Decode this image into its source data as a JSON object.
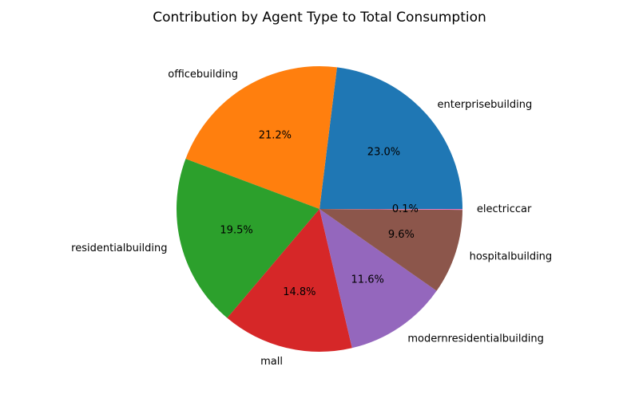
{
  "chart_data": {
    "type": "pie",
    "title": "Contribution by Agent Type to Total Consumption",
    "start_angle_deg": 0,
    "direction": "counterclockwise",
    "slices": [
      {
        "label": "enterprisebuilding",
        "percent": 23.0,
        "pct_label": "23.0%",
        "color": "#1f77b4"
      },
      {
        "label": "officebuilding",
        "percent": 21.2,
        "pct_label": "21.2%",
        "color": "#ff7f0e"
      },
      {
        "label": "residentialbuilding",
        "percent": 19.5,
        "pct_label": "19.5%",
        "color": "#2ca02c"
      },
      {
        "label": "mall",
        "percent": 14.8,
        "pct_label": "14.8%",
        "color": "#d62728"
      },
      {
        "label": "modernresidentialbuilding",
        "percent": 11.6,
        "pct_label": "11.6%",
        "color": "#9467bd"
      },
      {
        "label": "hospitalbuilding",
        "percent": 9.6,
        "pct_label": "9.6%",
        "color": "#8c564b"
      },
      {
        "label": "electriccar",
        "percent": 0.1,
        "pct_label": "0.1%",
        "color": "#e377c2"
      }
    ]
  }
}
